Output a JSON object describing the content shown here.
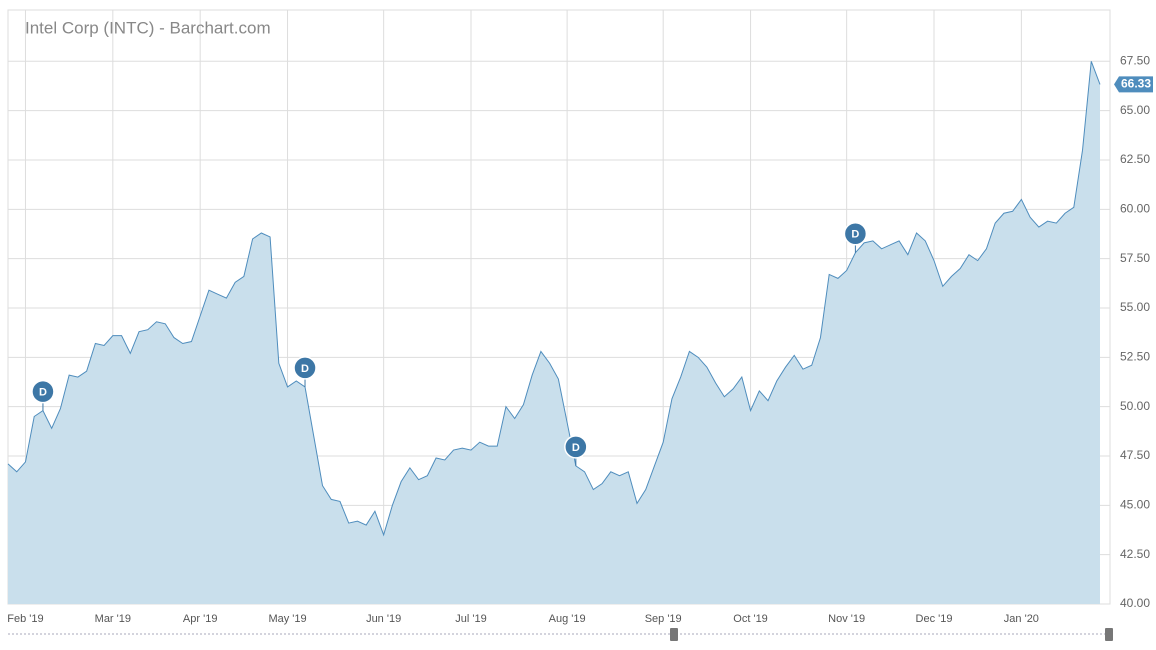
{
  "chart_data": {
    "type": "area",
    "title": "Intel Corp (INTC) - Barchart.com",
    "categories": [
      null,
      null,
      "Feb '19",
      null,
      null,
      null,
      null,
      null,
      null,
      null,
      null,
      null,
      "Mar '19",
      null,
      null,
      null,
      null,
      null,
      null,
      null,
      null,
      null,
      "Apr '19",
      null,
      null,
      null,
      null,
      null,
      null,
      null,
      null,
      null,
      "May '19",
      null,
      null,
      null,
      null,
      null,
      null,
      null,
      null,
      null,
      null,
      "Jun '19",
      null,
      null,
      null,
      null,
      null,
      null,
      null,
      null,
      null,
      "Jul '19",
      null,
      null,
      null,
      null,
      null,
      null,
      null,
      null,
      null,
      null,
      "Aug '19",
      null,
      null,
      null,
      null,
      null,
      null,
      null,
      null,
      null,
      null,
      "Sep '19",
      null,
      null,
      null,
      null,
      null,
      null,
      null,
      null,
      null,
      "Oct '19",
      null,
      null,
      null,
      null,
      null,
      null,
      null,
      null,
      null,
      null,
      "Nov '19",
      null,
      null,
      null,
      null,
      null,
      null,
      null,
      null,
      null,
      "Dec '19",
      null,
      null,
      null,
      null,
      null,
      null,
      null,
      null,
      null,
      "Jan '20",
      null,
      null,
      null,
      null,
      null,
      null,
      null,
      null,
      null
    ],
    "values": [
      47.1,
      46.7,
      47.2,
      49.5,
      49.8,
      48.9,
      49.9,
      51.6,
      51.5,
      51.8,
      53.2,
      53.1,
      53.6,
      53.6,
      52.7,
      53.8,
      53.9,
      54.3,
      54.2,
      53.5,
      53.2,
      53.3,
      54.6,
      55.9,
      55.7,
      55.5,
      56.3,
      56.6,
      58.5,
      58.8,
      58.6,
      52.2,
      51.0,
      51.3,
      51.0,
      48.5,
      46.0,
      45.3,
      45.2,
      44.1,
      44.2,
      44.0,
      44.7,
      43.5,
      45.0,
      46.2,
      46.9,
      46.3,
      46.5,
      47.4,
      47.3,
      47.8,
      47.9,
      47.8,
      48.2,
      48.0,
      48.0,
      50.0,
      49.4,
      50.1,
      51.6,
      52.8,
      52.2,
      51.4,
      49.2,
      47.0,
      46.7,
      45.8,
      46.1,
      46.7,
      46.5,
      46.7,
      45.1,
      45.8,
      47.0,
      48.2,
      50.4,
      51.5,
      52.8,
      52.5,
      52.0,
      51.2,
      50.5,
      50.9,
      51.5,
      49.8,
      50.8,
      50.3,
      51.3,
      52.0,
      52.6,
      51.9,
      52.1,
      53.5,
      56.7,
      56.5,
      56.9,
      57.8,
      58.3,
      58.4,
      58.0,
      58.2,
      58.4,
      57.7,
      58.8,
      58.4,
      57.4,
      56.1,
      56.6,
      57.0,
      57.7,
      57.4,
      58.0,
      59.3,
      59.8,
      59.9,
      60.5,
      59.6,
      59.1,
      59.4,
      59.3,
      59.8,
      60.1,
      63.0,
      67.5,
      66.33
    ],
    "color": "#4f8dbd",
    "fill": "#c9dfec",
    "ylim": [
      40,
      70.1
    ],
    "yticks": [
      {
        "value": 40,
        "label": "40.00"
      },
      {
        "value": 42.5,
        "label": "42.50"
      },
      {
        "value": 45,
        "label": "45.00"
      },
      {
        "value": 47.5,
        "label": "47.50"
      },
      {
        "value": 50,
        "label": "50.00"
      },
      {
        "value": 52.5,
        "label": "52.50"
      },
      {
        "value": 55,
        "label": "55.00"
      },
      {
        "value": 57.5,
        "label": "57.50"
      },
      {
        "value": 60,
        "label": "60.00"
      },
      {
        "value": 62.5,
        "label": "62.50"
      },
      {
        "value": 65,
        "label": "65.00"
      },
      {
        "value": 67.5,
        "label": "67.50"
      }
    ],
    "grid": true,
    "annotations": [
      {
        "text": "D",
        "category_index": 4
      },
      {
        "text": "D",
        "category_index": 34
      },
      {
        "text": "D",
        "category_index": 65
      },
      {
        "text": "D",
        "category_index": 97
      }
    ]
  }
}
